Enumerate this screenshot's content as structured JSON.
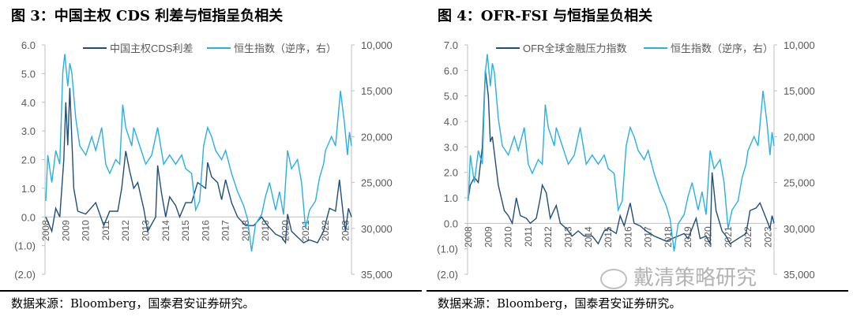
{
  "chart_data": [
    {
      "type": "line",
      "title": "图 3：中国主权 CDS 利差与恒指呈负相关",
      "source": "数据来源：Bloomberg，国泰君安证券研究。",
      "left_ticks": [
        "6.0",
        "5.0",
        "4.0",
        "3.0",
        "2.0",
        "1.0",
        "0.0",
        "(1.0)",
        "(2.0)"
      ],
      "ylim": [
        -2,
        6
      ],
      "right_ticks": [
        "10,000",
        "15,000",
        "20,000",
        "25,000",
        "30,000",
        "35,000"
      ],
      "y2lim": [
        35000,
        10000
      ],
      "y2_inverted": true,
      "x_ticks": [
        "2008",
        "2009",
        "2010",
        "2011",
        "2012",
        "2013",
        "2014",
        "2015",
        "2016",
        "2017",
        "2018",
        "2019",
        "2020",
        "2021",
        "2022",
        "2023"
      ],
      "xlim": [
        2008,
        2023.3
      ],
      "series": [
        {
          "name": "中国主权CDS利差",
          "axis": "left",
          "color": "#1f4e79",
          "x": [
            2008.0,
            2008.3,
            2008.5,
            2008.7,
            2008.9,
            2009.0,
            2009.1,
            2009.2,
            2009.4,
            2009.6,
            2010.0,
            2010.5,
            2010.9,
            2011.2,
            2011.6,
            2011.8,
            2012.0,
            2012.2,
            2012.4,
            2012.6,
            2012.9,
            2013.1,
            2013.5,
            2013.6,
            2013.8,
            2014.0,
            2014.2,
            2014.5,
            2014.7,
            2015.0,
            2015.3,
            2015.6,
            2016.0,
            2016.1,
            2016.3,
            2016.6,
            2016.8,
            2017.0,
            2017.3,
            2017.6,
            2018.0,
            2018.4,
            2018.8,
            2019.1,
            2019.5,
            2019.8,
            2020.0,
            2020.1,
            2020.3,
            2020.6,
            2020.9,
            2021.2,
            2021.6,
            2021.9,
            2022.2,
            2022.5,
            2022.7,
            2022.9,
            2023.0,
            2023.15,
            2023.3
          ],
          "y": [
            0.0,
            -0.5,
            0.3,
            0.0,
            2.0,
            4.0,
            2.5,
            4.5,
            1.0,
            0.2,
            0.1,
            0.5,
            -0.3,
            0.2,
            0.2,
            1.0,
            2.3,
            1.6,
            1.0,
            1.2,
            0.3,
            -0.5,
            0.0,
            1.8,
            0.8,
            0.0,
            0.7,
            0.4,
            0.0,
            0.5,
            0.5,
            1.2,
            1.0,
            1.9,
            1.4,
            1.2,
            0.6,
            1.3,
            0.5,
            0.0,
            -0.3,
            -0.3,
            0.0,
            -0.3,
            -0.6,
            -0.7,
            -0.9,
            0.1,
            -0.5,
            -0.7,
            -0.9,
            -0.8,
            -0.9,
            -0.5,
            0.3,
            0.2,
            1.3,
            0.0,
            -0.5,
            0.3,
            0.0
          ]
        },
        {
          "name": "恒生指数（逆序，右）",
          "axis": "right",
          "color": "#27b0e6",
          "x": [
            2008.0,
            2008.1,
            2008.3,
            2008.5,
            2008.7,
            2008.85,
            2008.95,
            2009.1,
            2009.2,
            2009.3,
            2009.5,
            2009.7,
            2010.0,
            2010.3,
            2010.5,
            2010.8,
            2011.0,
            2011.2,
            2011.5,
            2011.7,
            2011.85,
            2012.0,
            2012.3,
            2012.4,
            2012.7,
            2013.0,
            2013.3,
            2013.6,
            2013.9,
            2014.2,
            2014.5,
            2014.8,
            2015.0,
            2015.3,
            2015.5,
            2015.7,
            2015.9,
            2016.1,
            2016.3,
            2016.5,
            2016.8,
            2017.0,
            2017.3,
            2017.6,
            2017.9,
            2018.1,
            2018.3,
            2018.5,
            2018.8,
            2019.0,
            2019.2,
            2019.5,
            2019.7,
            2019.9,
            2020.1,
            2020.3,
            2020.6,
            2020.8,
            2021.0,
            2021.2,
            2021.5,
            2021.7,
            2021.9,
            2022.0,
            2022.3,
            2022.5,
            2022.75,
            2022.95,
            2023.1,
            2023.2,
            2023.3
          ],
          "y": [
            27000,
            22000,
            25000,
            21500,
            23000,
            13000,
            11000,
            14500,
            12000,
            13000,
            18000,
            21000,
            22000,
            20000,
            21500,
            19000,
            23000,
            24000,
            22500,
            23000,
            16500,
            19000,
            21000,
            19000,
            21000,
            23000,
            22000,
            19000,
            23000,
            22000,
            23000,
            22000,
            23500,
            24000,
            28000,
            27000,
            21000,
            19000,
            20000,
            21500,
            22500,
            21500,
            24000,
            26000,
            27500,
            29000,
            32500,
            29500,
            28500,
            26500,
            25000,
            28000,
            26000,
            28500,
            21500,
            23500,
            22500,
            25000,
            30000,
            28000,
            27000,
            24500,
            23000,
            21500,
            20000,
            21000,
            15000,
            18500,
            22000,
            19500,
            21000
          ]
        }
      ]
    },
    {
      "type": "line",
      "title": "图 4：OFR-FSI 与恒指呈负相关",
      "source": "数据来源：Bloomberg，国泰君安证券研究。",
      "left_ticks": [
        "7.0",
        "6.0",
        "5.0",
        "4.0",
        "3.0",
        "2.0",
        "1.0",
        "0.0",
        "(1.0)",
        "(2.0)"
      ],
      "ylim": [
        -2,
        7
      ],
      "right_ticks": [
        "10,000",
        "15,000",
        "20,000",
        "25,000",
        "30,000",
        "35,000"
      ],
      "y2lim": [
        35000,
        10000
      ],
      "y2_inverted": true,
      "x_ticks": [
        "2008",
        "2009",
        "2010",
        "2011",
        "2012",
        "2013",
        "2014",
        "2015",
        "2016",
        "2017",
        "2018",
        "2019",
        "2020",
        "2021",
        "2022",
        "2023"
      ],
      "xlim": [
        2008,
        2023.3
      ],
      "series": [
        {
          "name": "OFR全球金融压力指数",
          "axis": "left",
          "color": "#1f4e79",
          "x": [
            2008.0,
            2008.1,
            2008.3,
            2008.5,
            2008.7,
            2008.85,
            2009.0,
            2009.1,
            2009.2,
            2009.5,
            2009.8,
            2010.0,
            2010.2,
            2010.4,
            2010.6,
            2010.9,
            2011.1,
            2011.4,
            2011.6,
            2011.7,
            2011.9,
            2012.1,
            2012.4,
            2012.6,
            2012.9,
            2013.2,
            2013.5,
            2013.8,
            2014.2,
            2014.5,
            2014.8,
            2015.0,
            2015.4,
            2015.6,
            2015.8,
            2016.1,
            2016.3,
            2016.6,
            2016.9,
            2017.3,
            2017.6,
            2017.9,
            2018.2,
            2018.5,
            2018.8,
            2019.0,
            2019.4,
            2019.6,
            2019.9,
            2020.1,
            2020.2,
            2020.4,
            2020.7,
            2020.9,
            2021.1,
            2021.5,
            2021.9,
            2022.1,
            2022.4,
            2022.6,
            2022.9,
            2023.1,
            2023.2,
            2023.3
          ],
          "y": [
            1.0,
            1.5,
            1.8,
            1.6,
            3.0,
            6.0,
            5.0,
            3.2,
            3.4,
            1.5,
            0.5,
            0.3,
            0.0,
            1.0,
            0.3,
            0.2,
            0.0,
            0.2,
            1.0,
            1.5,
            1.2,
            0.2,
            0.7,
            0.0,
            -0.2,
            -0.5,
            -0.3,
            -0.5,
            -0.5,
            -0.8,
            -0.3,
            -0.2,
            -0.4,
            0.3,
            -0.1,
            0.8,
            0.0,
            -0.1,
            -0.3,
            -0.5,
            -0.6,
            -0.7,
            -0.6,
            -0.5,
            -0.4,
            -0.6,
            0.2,
            -0.6,
            -0.5,
            -0.8,
            2.0,
            0.5,
            -0.3,
            -0.5,
            -0.8,
            -0.6,
            -0.4,
            0.5,
            0.6,
            0.8,
            0.2,
            -0.2,
            0.3,
            0.0
          ]
        },
        {
          "name": "恒生指数（逆序，右）",
          "axis": "right",
          "color": "#27b0e6",
          "x": [
            2008.0,
            2008.1,
            2008.3,
            2008.5,
            2008.7,
            2008.85,
            2008.95,
            2009.1,
            2009.2,
            2009.3,
            2009.5,
            2009.7,
            2010.0,
            2010.3,
            2010.5,
            2010.8,
            2011.0,
            2011.2,
            2011.5,
            2011.7,
            2011.85,
            2012.0,
            2012.3,
            2012.4,
            2012.7,
            2013.0,
            2013.3,
            2013.6,
            2013.9,
            2014.2,
            2014.5,
            2014.8,
            2015.0,
            2015.3,
            2015.5,
            2015.7,
            2015.9,
            2016.1,
            2016.3,
            2016.5,
            2016.8,
            2017.0,
            2017.3,
            2017.6,
            2017.9,
            2018.1,
            2018.3,
            2018.5,
            2018.8,
            2019.0,
            2019.2,
            2019.5,
            2019.7,
            2019.9,
            2020.1,
            2020.3,
            2020.6,
            2020.8,
            2021.0,
            2021.2,
            2021.5,
            2021.7,
            2021.9,
            2022.0,
            2022.3,
            2022.5,
            2022.75,
            2022.95,
            2023.1,
            2023.2,
            2023.3
          ],
          "y": [
            27000,
            22000,
            25000,
            21500,
            23000,
            13000,
            11000,
            14500,
            12000,
            13000,
            18000,
            21000,
            22000,
            20000,
            21500,
            19000,
            23000,
            24000,
            22500,
            23000,
            16500,
            19000,
            21000,
            19000,
            21000,
            23000,
            22000,
            19000,
            23000,
            22000,
            23000,
            22000,
            23500,
            24000,
            28000,
            27000,
            21000,
            19000,
            20000,
            21500,
            22500,
            21500,
            24000,
            26000,
            27500,
            29000,
            32500,
            29500,
            28500,
            26500,
            25000,
            28000,
            26000,
            28500,
            21500,
            23500,
            22500,
            25000,
            30000,
            28000,
            27000,
            24500,
            23000,
            21500,
            20000,
            21000,
            15000,
            18500,
            22000,
            19500,
            21000
          ]
        }
      ]
    }
  ],
  "watermark": "戴清策略研究"
}
